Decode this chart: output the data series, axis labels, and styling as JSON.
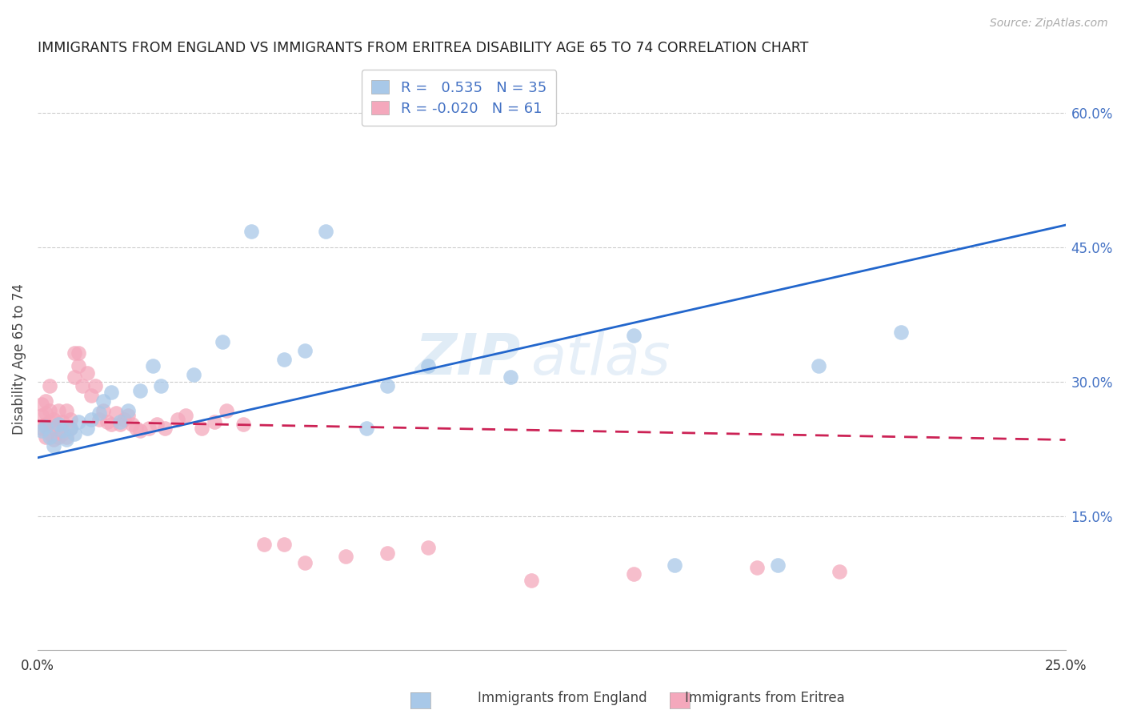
{
  "title": "IMMIGRANTS FROM ENGLAND VS IMMIGRANTS FROM ERITREA DISABILITY AGE 65 TO 74 CORRELATION CHART",
  "source": "Source: ZipAtlas.com",
  "ylabel": "Disability Age 65 to 74",
  "xlim": [
    0.0,
    0.25
  ],
  "ylim": [
    0.0,
    0.65
  ],
  "england_R": 0.535,
  "england_N": 35,
  "eritrea_R": -0.02,
  "eritrea_N": 61,
  "england_color": "#a8c8e8",
  "eritrea_color": "#f4a8bc",
  "england_line_color": "#2266cc",
  "eritrea_line_color": "#cc2255",
  "watermark_zip": "ZIP",
  "watermark_atlas": "atlas",
  "england_line_x": [
    0.0,
    0.25
  ],
  "england_line_y": [
    0.215,
    0.475
  ],
  "eritrea_line_x": [
    0.0,
    0.25
  ],
  "eritrea_line_y": [
    0.256,
    0.235
  ],
  "england_x": [
    0.001,
    0.002,
    0.003,
    0.004,
    0.005,
    0.006,
    0.007,
    0.008,
    0.009,
    0.01,
    0.012,
    0.013,
    0.015,
    0.016,
    0.018,
    0.02,
    0.022,
    0.025,
    0.028,
    0.03,
    0.038,
    0.045,
    0.052,
    0.06,
    0.065,
    0.07,
    0.08,
    0.085,
    0.095,
    0.115,
    0.145,
    0.155,
    0.18,
    0.19,
    0.21
  ],
  "england_y": [
    0.245,
    0.25,
    0.238,
    0.228,
    0.252,
    0.245,
    0.235,
    0.248,
    0.242,
    0.255,
    0.248,
    0.258,
    0.265,
    0.278,
    0.288,
    0.255,
    0.268,
    0.29,
    0.318,
    0.295,
    0.308,
    0.345,
    0.468,
    0.325,
    0.335,
    0.468,
    0.248,
    0.295,
    0.318,
    0.305,
    0.352,
    0.095,
    0.095,
    0.318,
    0.355
  ],
  "eritrea_x": [
    0.001,
    0.001,
    0.001,
    0.002,
    0.002,
    0.002,
    0.002,
    0.003,
    0.003,
    0.003,
    0.003,
    0.004,
    0.004,
    0.004,
    0.005,
    0.005,
    0.005,
    0.006,
    0.006,
    0.007,
    0.007,
    0.008,
    0.008,
    0.009,
    0.009,
    0.01,
    0.01,
    0.011,
    0.012,
    0.013,
    0.014,
    0.015,
    0.016,
    0.017,
    0.018,
    0.019,
    0.02,
    0.021,
    0.022,
    0.023,
    0.024,
    0.025,
    0.027,
    0.029,
    0.031,
    0.034,
    0.036,
    0.04,
    0.043,
    0.046,
    0.05,
    0.055,
    0.06,
    0.065,
    0.075,
    0.085,
    0.095,
    0.12,
    0.145,
    0.175,
    0.195
  ],
  "eritrea_y": [
    0.248,
    0.262,
    0.275,
    0.238,
    0.252,
    0.265,
    0.278,
    0.242,
    0.255,
    0.268,
    0.295,
    0.235,
    0.248,
    0.258,
    0.238,
    0.252,
    0.268,
    0.242,
    0.255,
    0.238,
    0.268,
    0.248,
    0.258,
    0.305,
    0.332,
    0.318,
    0.332,
    0.295,
    0.31,
    0.285,
    0.295,
    0.258,
    0.268,
    0.255,
    0.252,
    0.265,
    0.252,
    0.258,
    0.262,
    0.252,
    0.248,
    0.245,
    0.248,
    0.252,
    0.248,
    0.258,
    0.262,
    0.248,
    0.255,
    0.268,
    0.252,
    0.118,
    0.118,
    0.098,
    0.105,
    0.108,
    0.115,
    0.078,
    0.085,
    0.092,
    0.088
  ]
}
